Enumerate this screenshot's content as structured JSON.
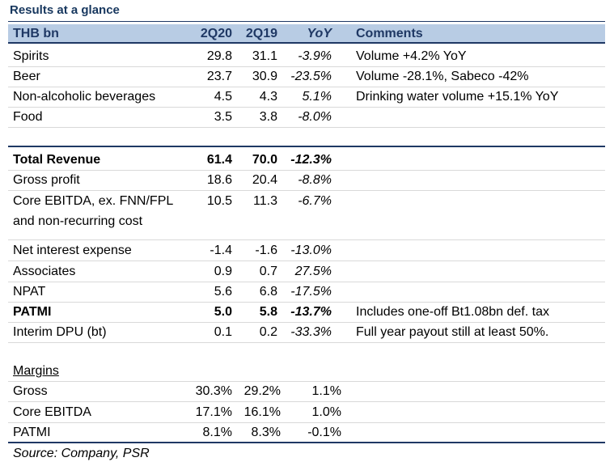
{
  "title": "Results at a glance",
  "header": {
    "label": "THB bn",
    "c1": "2Q20",
    "c2": "2Q19",
    "c3": "YoY",
    "c4": "Comments"
  },
  "rows": [
    {
      "label": "Spirits",
      "c1": "29.8",
      "c2": "31.1",
      "c3": "-3.9%",
      "c4": "Volume +4.2% YoY"
    },
    {
      "label": "Beer",
      "c1": "23.7",
      "c2": "30.9",
      "c3": "-23.5%",
      "c4": "Volume -28.1%, Sabeco -42%"
    },
    {
      "label": "Non-alcoholic beverages",
      "c1": "4.5",
      "c2": "4.3",
      "c3": "5.1%",
      "c4": "Drinking water volume +15.1% YoY"
    },
    {
      "label": "Food",
      "c1": "3.5",
      "c2": "3.8",
      "c3": "-8.0%",
      "c4": ""
    },
    {
      "label": "Total Revenue",
      "c1": "61.4",
      "c2": "70.0",
      "c3": "-12.3%",
      "c4": ""
    },
    {
      "label": "Gross profit",
      "c1": "18.6",
      "c2": "20.4",
      "c3": "-8.8%",
      "c4": ""
    },
    {
      "label": "Core EBITDA, ex. FNN/FPL",
      "label2": "and  non-recurring cost",
      "c1": "10.5",
      "c2": "11.3",
      "c3": "-6.7%",
      "c4": ""
    },
    {
      "label": "Net interest expense",
      "c1": "-1.4",
      "c2": "-1.6",
      "c3": "-13.0%",
      "c4": ""
    },
    {
      "label": "Associates",
      "c1": "0.9",
      "c2": "0.7",
      "c3": "27.5%",
      "c4": ""
    },
    {
      "label": "NPAT",
      "c1": "5.6",
      "c2": "6.8",
      "c3": "-17.5%",
      "c4": ""
    },
    {
      "label": "PATMI",
      "c1": "5.0",
      "c2": "5.8",
      "c3": "-13.7%",
      "c4": "Includes one-off Bt1.08bn def. tax"
    },
    {
      "label": "Interim DPU (bt)",
      "c1": "0.1",
      "c2": "0.2",
      "c3": "-33.3%",
      "c4": "Full year payout still at least 50%."
    }
  ],
  "margins": {
    "heading": "Margins",
    "rows": [
      {
        "label": "Gross",
        "c1": "30.3%",
        "c2": "29.2%",
        "c3": "1.1%"
      },
      {
        "label": "Core EBITDA",
        "c1": "17.1%",
        "c2": "16.1%",
        "c3": "1.0%"
      },
      {
        "label": "PATMI",
        "c1": "8.1%",
        "c2": "8.3%",
        "c3": "-0.1%"
      }
    ]
  },
  "source": "Source: Company, PSR"
}
